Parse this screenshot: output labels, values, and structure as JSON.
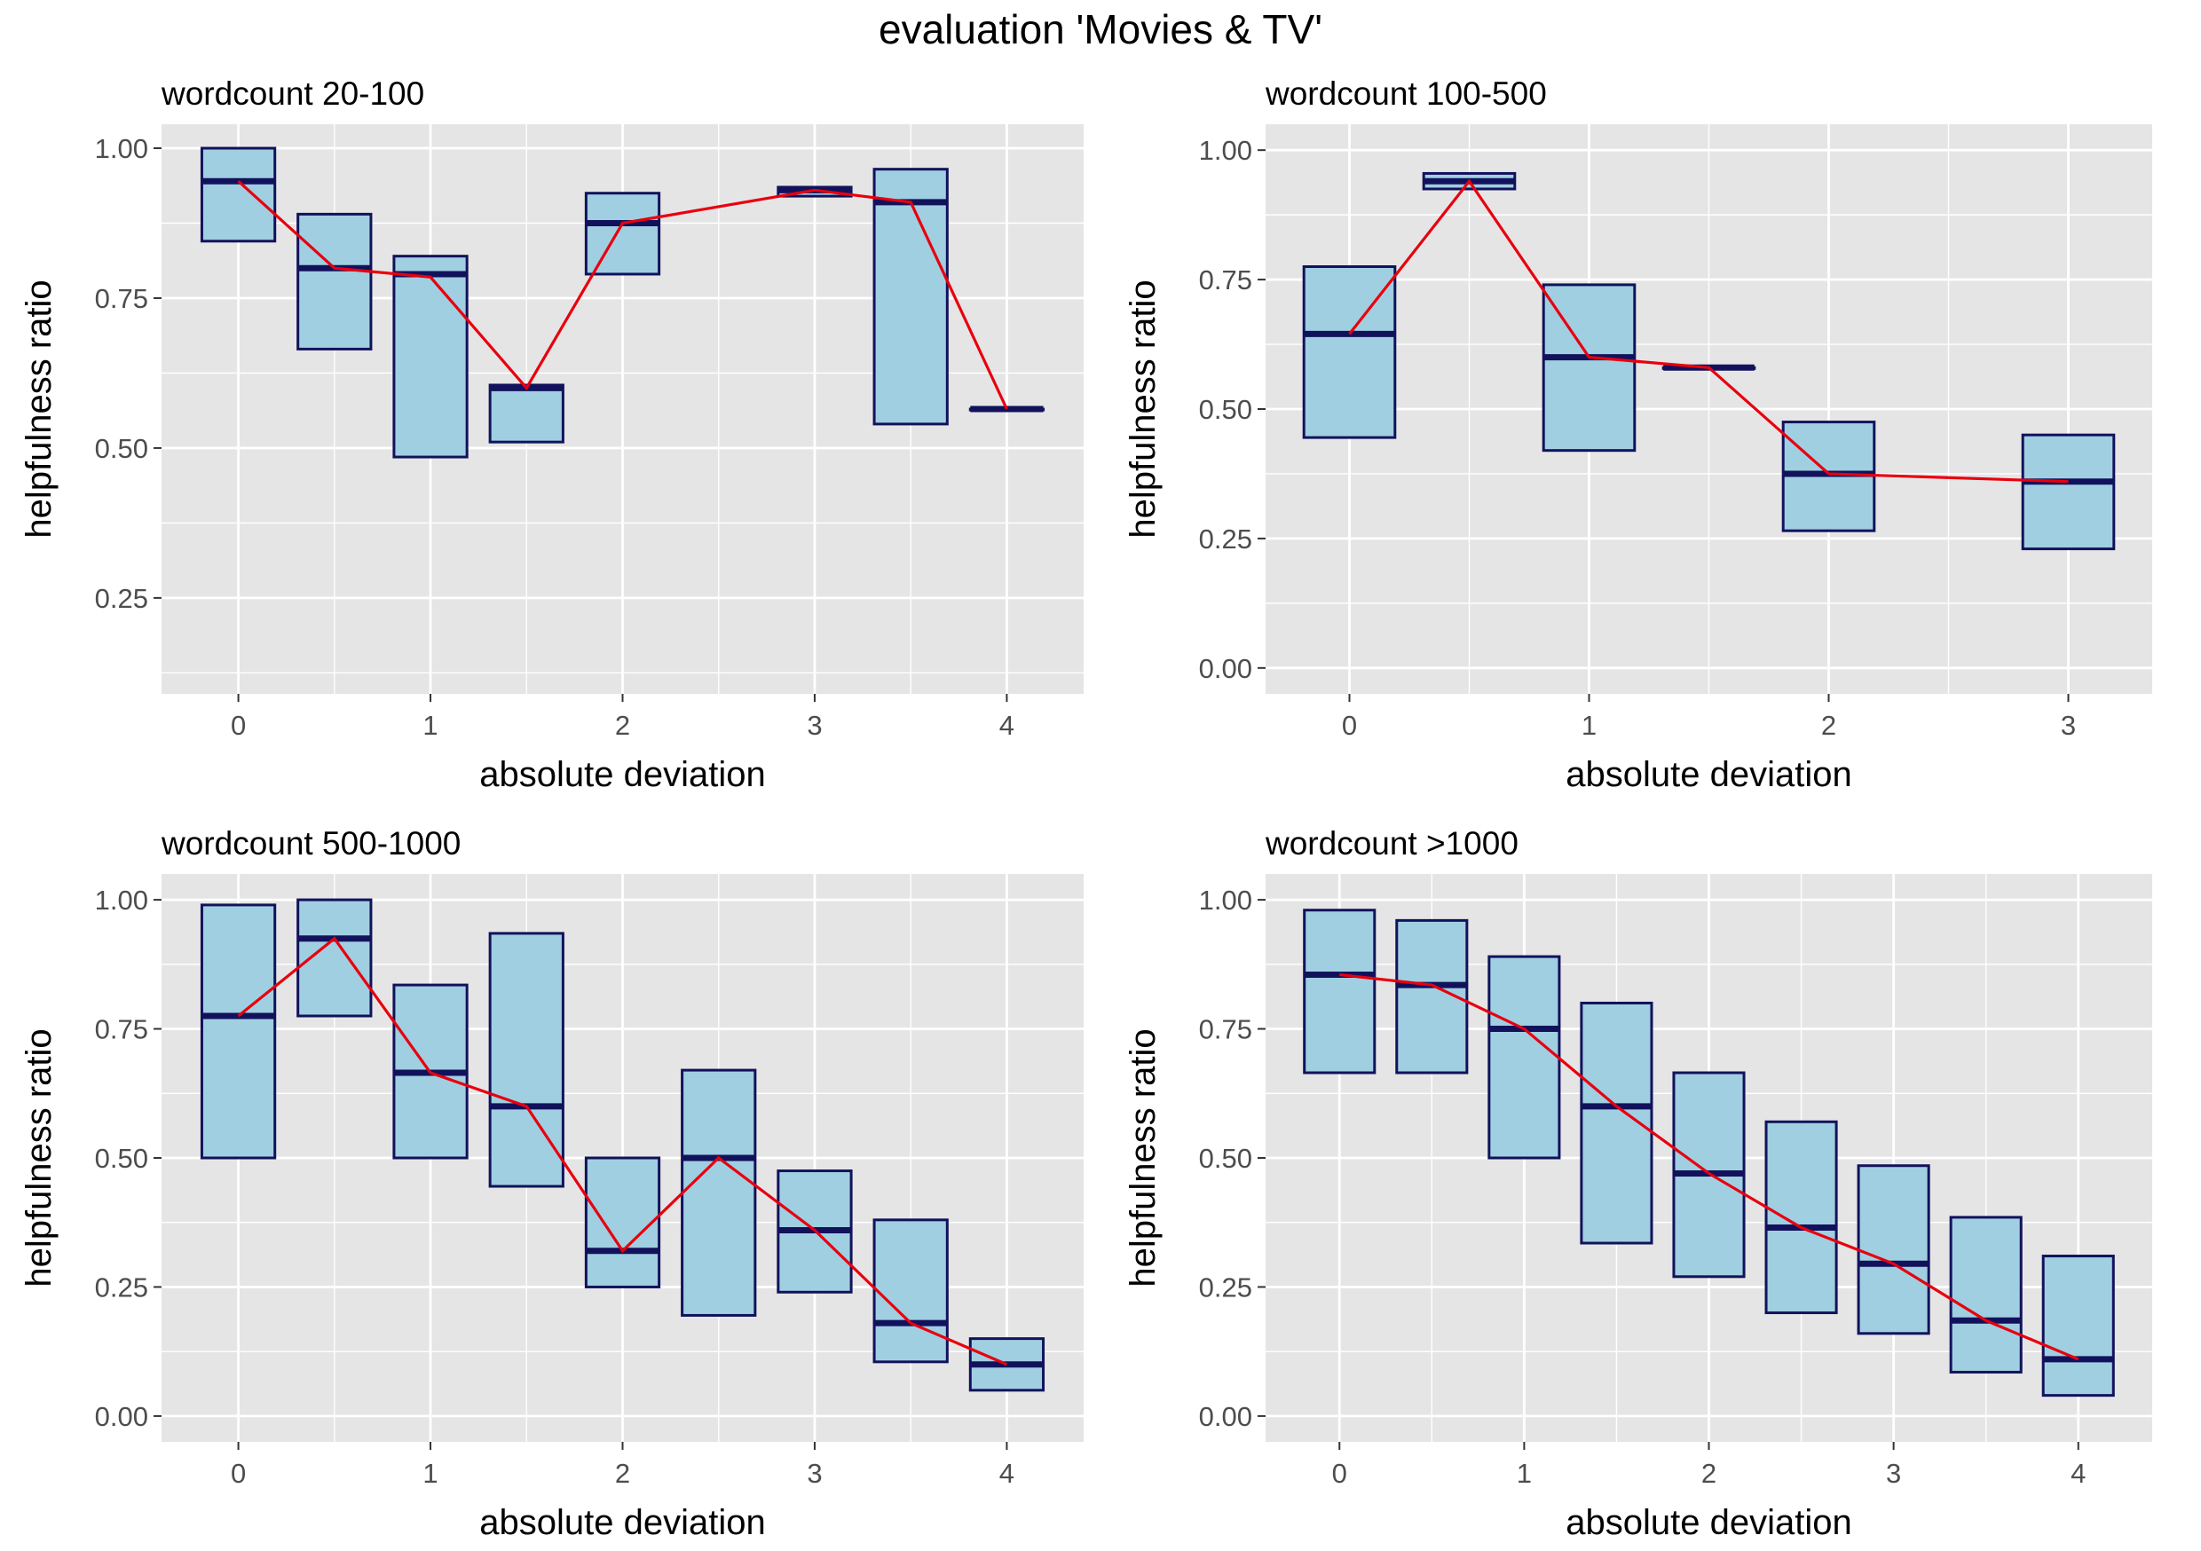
{
  "title": "evaluation 'Movies & TV'",
  "colors": {
    "panel_bg": "#e5e5e5",
    "grid": "#ffffff",
    "box_fill": "#a0cfe1",
    "box_stroke": "#12125c",
    "line": "#e8000e"
  },
  "chart_data": [
    {
      "type": "box",
      "title": "wordcount 20-100",
      "xlabel": "absolute deviation",
      "ylabel": "helpfulness ratio",
      "xlim": [
        -0.4,
        4.4
      ],
      "ylim": [
        0.09,
        1.04
      ],
      "xticks": [
        "0",
        "1",
        "2",
        "3",
        "4"
      ],
      "yticks": [
        "0.25",
        "0.50",
        "0.75",
        "1.00"
      ],
      "boxes": [
        {
          "x": 0.0,
          "low": 0.845,
          "median": 0.945,
          "high": 1.0
        },
        {
          "x": 0.5,
          "low": 0.665,
          "median": 0.8,
          "high": 0.89
        },
        {
          "x": 1.0,
          "low": 0.485,
          "median": 0.79,
          "high": 0.82
        },
        {
          "x": 1.5,
          "low": 0.51,
          "median": 0.6,
          "high": 0.605
        },
        {
          "x": 2.0,
          "low": 0.79,
          "median": 0.875,
          "high": 0.925
        },
        {
          "x": 3.0,
          "low": 0.92,
          "median": 0.93,
          "high": 0.935
        },
        {
          "x": 3.5,
          "low": 0.54,
          "median": 0.91,
          "high": 0.965
        },
        {
          "x": 4.0,
          "low": 0.565,
          "median": 0.565,
          "high": 0.565
        }
      ],
      "mean_line": {
        "x": [
          0,
          0.5,
          1,
          1.5,
          2,
          3,
          3.5,
          4
        ],
        "y": [
          0.945,
          0.8,
          0.785,
          0.6,
          0.875,
          0.93,
          0.91,
          0.565
        ]
      }
    },
    {
      "type": "box",
      "title": "wordcount 100-500",
      "xlabel": "absolute deviation",
      "ylabel": "helpfulness ratio",
      "xlim": [
        -0.35,
        3.35
      ],
      "ylim": [
        -0.05,
        1.05
      ],
      "xticks": [
        "0",
        "1",
        "2",
        "3"
      ],
      "yticks": [
        "0.00",
        "0.25",
        "0.50",
        "0.75",
        "1.00"
      ],
      "boxes": [
        {
          "x": 0.0,
          "low": 0.445,
          "median": 0.645,
          "high": 0.775
        },
        {
          "x": 0.5,
          "low": 0.925,
          "median": 0.94,
          "high": 0.955
        },
        {
          "x": 1.0,
          "low": 0.42,
          "median": 0.6,
          "high": 0.74
        },
        {
          "x": 1.5,
          "low": 0.58,
          "median": 0.58,
          "high": 0.58
        },
        {
          "x": 2.0,
          "low": 0.265,
          "median": 0.375,
          "high": 0.475
        },
        {
          "x": 3.0,
          "low": 0.23,
          "median": 0.36,
          "high": 0.45
        }
      ],
      "mean_line": {
        "x": [
          0,
          0.5,
          1,
          1.5,
          2,
          3
        ],
        "y": [
          0.645,
          0.94,
          0.6,
          0.58,
          0.375,
          0.36
        ]
      }
    },
    {
      "type": "box",
      "title": "wordcount 500-1000",
      "xlabel": "absolute deviation",
      "ylabel": "helpfulness ratio",
      "xlim": [
        -0.4,
        4.4
      ],
      "ylim": [
        -0.05,
        1.05
      ],
      "xticks": [
        "0",
        "1",
        "2",
        "3",
        "4"
      ],
      "yticks": [
        "0.00",
        "0.25",
        "0.50",
        "0.75",
        "1.00"
      ],
      "boxes": [
        {
          "x": 0.0,
          "low": 0.5,
          "median": 0.775,
          "high": 0.99
        },
        {
          "x": 0.5,
          "low": 0.775,
          "median": 0.925,
          "high": 1.0
        },
        {
          "x": 1.0,
          "low": 0.5,
          "median": 0.665,
          "high": 0.835
        },
        {
          "x": 1.5,
          "low": 0.445,
          "median": 0.6,
          "high": 0.935
        },
        {
          "x": 2.0,
          "low": 0.25,
          "median": 0.32,
          "high": 0.5
        },
        {
          "x": 2.5,
          "low": 0.195,
          "median": 0.5,
          "high": 0.67
        },
        {
          "x": 3.0,
          "low": 0.24,
          "median": 0.36,
          "high": 0.475
        },
        {
          "x": 3.5,
          "low": 0.105,
          "median": 0.18,
          "high": 0.38
        },
        {
          "x": 4.0,
          "low": 0.05,
          "median": 0.1,
          "high": 0.15
        }
      ],
      "mean_line": {
        "x": [
          0,
          0.5,
          1,
          1.5,
          2,
          2.5,
          3,
          3.5,
          4
        ],
        "y": [
          0.775,
          0.925,
          0.665,
          0.6,
          0.32,
          0.5,
          0.36,
          0.18,
          0.1
        ]
      }
    },
    {
      "type": "box",
      "title": "wordcount >1000",
      "xlabel": "absolute deviation",
      "ylabel": "helpfulness ratio",
      "xlim": [
        -0.4,
        4.4
      ],
      "ylim": [
        -0.05,
        1.05
      ],
      "xticks": [
        "0",
        "1",
        "2",
        "3",
        "4"
      ],
      "yticks": [
        "0.00",
        "0.25",
        "0.50",
        "0.75",
        "1.00"
      ],
      "boxes": [
        {
          "x": 0.0,
          "low": 0.665,
          "median": 0.855,
          "high": 0.98
        },
        {
          "x": 0.5,
          "low": 0.665,
          "median": 0.835,
          "high": 0.96
        },
        {
          "x": 1.0,
          "low": 0.5,
          "median": 0.75,
          "high": 0.89
        },
        {
          "x": 1.5,
          "low": 0.335,
          "median": 0.6,
          "high": 0.8
        },
        {
          "x": 2.0,
          "low": 0.27,
          "median": 0.47,
          "high": 0.665
        },
        {
          "x": 2.5,
          "low": 0.2,
          "median": 0.365,
          "high": 0.57
        },
        {
          "x": 3.0,
          "low": 0.16,
          "median": 0.295,
          "high": 0.485
        },
        {
          "x": 3.5,
          "low": 0.085,
          "median": 0.185,
          "high": 0.385
        },
        {
          "x": 4.0,
          "low": 0.04,
          "median": 0.11,
          "high": 0.31
        }
      ],
      "mean_line": {
        "x": [
          0,
          0.5,
          1,
          1.5,
          2,
          2.5,
          3,
          3.5,
          4
        ],
        "y": [
          0.855,
          0.835,
          0.75,
          0.6,
          0.47,
          0.365,
          0.295,
          0.185,
          0.11
        ]
      }
    }
  ]
}
